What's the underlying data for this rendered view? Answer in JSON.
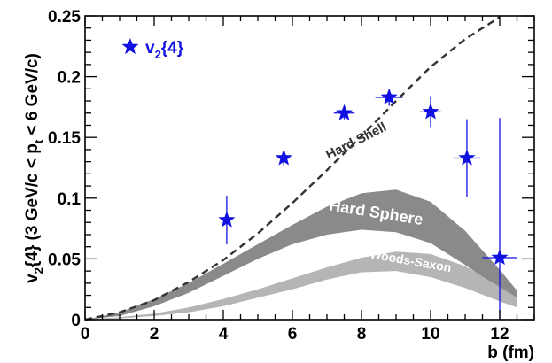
{
  "chart_data": {
    "type": "scatter",
    "xlabel": "b (fm)",
    "ylabel": "v2{4} (3 GeV/c < pt < 6 GeV/c)",
    "ylabel_parts": {
      "a": "v",
      "a_sub": "2",
      "b": "{4} (3 GeV/c < p",
      "b_sub": "t",
      "c": " < 6 GeV/c)"
    },
    "xlim": [
      0,
      13
    ],
    "ylim": [
      0,
      0.25
    ],
    "x_ticks": [
      "0",
      "2",
      "4",
      "6",
      "8",
      "10",
      "12"
    ],
    "y_ticks": [
      "0",
      "0.05",
      "0.1",
      "0.15",
      "0.2",
      "0.25"
    ],
    "grid": false,
    "legend": {
      "position": "top-left",
      "label_main": "v",
      "label_sub": "2",
      "label_rest": "{4}"
    },
    "series": [
      {
        "name": "v2{4}",
        "kind": "points",
        "color": "#1010e0",
        "marker": "star",
        "x": [
          4.1,
          5.75,
          7.5,
          8.8,
          10.0,
          11.05,
          12.0
        ],
        "y": [
          0.082,
          0.133,
          0.17,
          0.183,
          0.171,
          0.133,
          0.051
        ],
        "x_err": [
          0.0,
          0.2,
          0.3,
          0.4,
          0.3,
          0.4,
          0.5
        ],
        "y_err": [
          0.02,
          0.006,
          0.005,
          0.007,
          0.013,
          0.032,
          0.115
        ]
      },
      {
        "name": "Hard Shell",
        "kind": "dashed-curve",
        "color": "#333333",
        "x": [
          0,
          1,
          2,
          3,
          4,
          5,
          6,
          7,
          8,
          9,
          10,
          11,
          12
        ],
        "y": [
          0,
          0.006,
          0.016,
          0.031,
          0.049,
          0.071,
          0.096,
          0.123,
          0.151,
          0.18,
          0.208,
          0.231,
          0.249
        ]
      },
      {
        "name": "Hard Sphere",
        "kind": "band",
        "color": "#8a8a8a",
        "x": [
          0,
          1,
          2,
          3,
          4,
          5,
          6,
          7,
          8,
          9,
          10,
          11,
          12,
          12.5
        ],
        "lower": [
          0,
          0.003,
          0.011,
          0.022,
          0.036,
          0.05,
          0.062,
          0.07,
          0.074,
          0.072,
          0.063,
          0.045,
          0.025,
          0.015
        ],
        "upper": [
          0,
          0.006,
          0.017,
          0.03,
          0.046,
          0.062,
          0.078,
          0.093,
          0.104,
          0.107,
          0.097,
          0.073,
          0.041,
          0.024
        ]
      },
      {
        "name": "Woods-Saxon",
        "kind": "band",
        "color": "#b5b5b5",
        "x": [
          0,
          1,
          2,
          3,
          4,
          5,
          6,
          7,
          8,
          9,
          10,
          11,
          12,
          12.5
        ],
        "lower": [
          0,
          0.001,
          0.003,
          0.006,
          0.011,
          0.018,
          0.025,
          0.033,
          0.039,
          0.04,
          0.035,
          0.026,
          0.015,
          0.01
        ],
        "upper": [
          0,
          0.002,
          0.005,
          0.01,
          0.017,
          0.025,
          0.034,
          0.043,
          0.051,
          0.056,
          0.054,
          0.044,
          0.027,
          0.018
        ]
      }
    ],
    "annotations": [
      {
        "text": "Hard Shell",
        "x": 7.9,
        "y": 0.144,
        "angle": -27,
        "size": 15
      },
      {
        "text": "Hard Sphere",
        "x": 8.4,
        "y": 0.084,
        "angle": 9,
        "size": 18
      },
      {
        "text": "Woods-Saxon",
        "x": 9.4,
        "y": 0.045,
        "angle": 10,
        "size": 14
      }
    ]
  }
}
